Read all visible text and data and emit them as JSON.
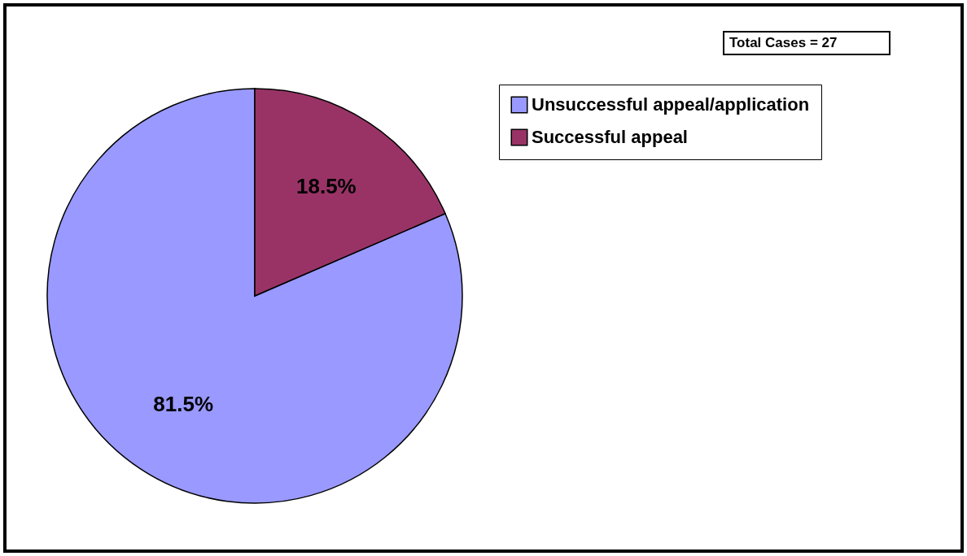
{
  "chart_data": {
    "type": "pie",
    "categories": [
      "Unsuccessful appeal/application",
      "Successful appeal"
    ],
    "values": [
      81.5,
      18.5
    ],
    "colors": [
      "#9999ff",
      "#993366"
    ],
    "value_labels": [
      "81.5%",
      "18.5%"
    ],
    "annotations": [
      "Total Cases = 27"
    ],
    "legend": "right"
  }
}
